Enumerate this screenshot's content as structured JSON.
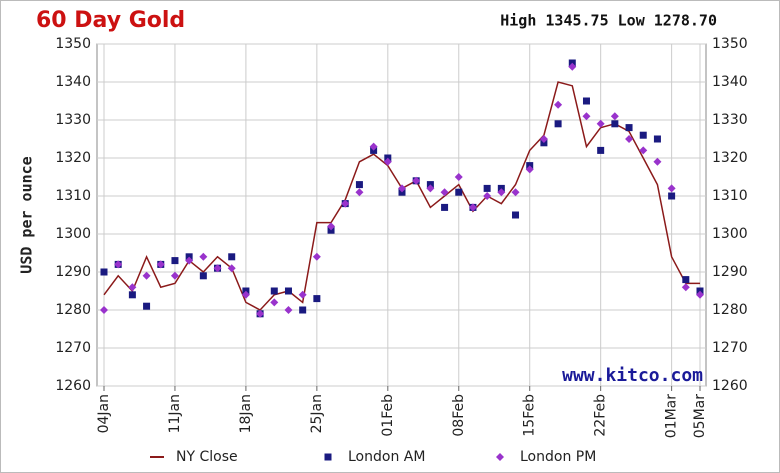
{
  "chart_data": {
    "type": "line",
    "title": "60 Day Gold",
    "subtitle": "High 1345.75 Low 1278.70",
    "annotation": "www.kitco.com",
    "ylabel": "USD per ounce",
    "categories": [
      "04Jan",
      null,
      null,
      null,
      null,
      "11Jan",
      null,
      null,
      null,
      null,
      "18Jan",
      null,
      null,
      null,
      null,
      "25Jan",
      null,
      null,
      null,
      null,
      "01Feb",
      null,
      null,
      null,
      null,
      "08Feb",
      null,
      null,
      null,
      null,
      "15Feb",
      null,
      null,
      null,
      null,
      "22Feb",
      null,
      null,
      null,
      null,
      "01Mar",
      null,
      "05Mar"
    ],
    "series": [
      {
        "name": "NY Close",
        "color": "#8b1a1a",
        "style": "line",
        "values": [
          1284,
          1289,
          1285,
          1294,
          1286,
          1287,
          1293,
          1290,
          1294,
          1291,
          1282,
          1280,
          1284,
          1285,
          1282,
          1303,
          1303,
          1309,
          1319,
          1321,
          1318,
          1312,
          1314,
          1307,
          1310,
          1313,
          1306,
          1310,
          1308,
          1313,
          1322,
          1326,
          1340,
          1339,
          1323,
          1328,
          1329,
          1327,
          1320,
          1313,
          1294,
          1287,
          1287
        ]
      },
      {
        "name": "London AM",
        "color": "#1a1a80",
        "style": "square",
        "values": [
          1290,
          1292,
          1284,
          1281,
          1292,
          1293,
          1294,
          1289,
          1291,
          1294,
          1285,
          1279,
          1285,
          1285,
          1280,
          1283,
          1301,
          1308,
          1313,
          1322,
          1320,
          1311,
          1314,
          1313,
          1307,
          1311,
          1307,
          1312,
          1312,
          1305,
          1318,
          1324,
          1329,
          1345,
          1335,
          1322,
          1329,
          1328,
          1326,
          1325,
          1310,
          1288,
          1285
        ]
      },
      {
        "name": "London PM",
        "color": "#9933cc",
        "style": "diamond",
        "values": [
          1280,
          1292,
          1286,
          1289,
          1292,
          1289,
          1293,
          1294,
          1291,
          1291,
          1284,
          1279,
          1282,
          1280,
          1284,
          1294,
          1302,
          1308,
          1311,
          1323,
          1319,
          1312,
          1314,
          1312,
          1311,
          1315,
          1307,
          1310,
          1311,
          1311,
          1317,
          1325,
          1334,
          1344,
          1331,
          1329,
          1331,
          1325,
          1322,
          1319,
          1312,
          1286,
          1284
        ]
      }
    ],
    "ylim": [
      1260,
      1350
    ],
    "yticks": [
      1260,
      1270,
      1280,
      1290,
      1300,
      1310,
      1320,
      1330,
      1340,
      1350
    ],
    "grid": true
  }
}
